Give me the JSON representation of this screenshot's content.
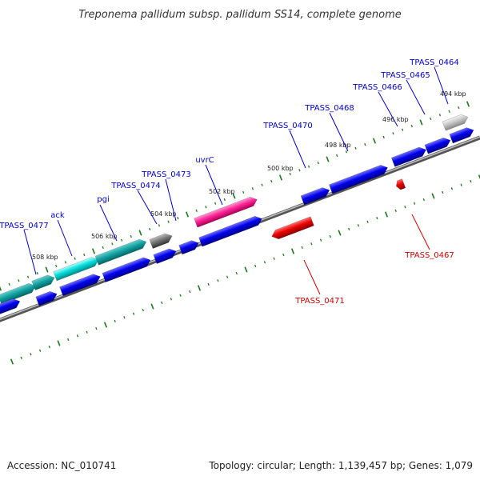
{
  "title": "Treponema pallidum subsp. pallidum SS14, complete genome",
  "footer": {
    "accession": "Accession: NC_010741",
    "summary": "Topology: circular; Length: 1,139,457 bp; Genes: 1,079"
  },
  "colors": {
    "backbone": "#888888",
    "tick": "#1a7a1a",
    "forward_cds": "#0000ee",
    "reverse_cds": "#ee0000",
    "trna": "#00cccc",
    "rrna": "#ff33aa",
    "other": "#777777",
    "pseudo": "#bbbbbb",
    "label_forward": "#0000cc",
    "label_reverse": "#cc0000"
  },
  "tick_labels": [
    "508 kbp",
    "506 kbp",
    "504 kbp",
    "502 kbp",
    "500 kbp",
    "498 kbp",
    "496 kbp",
    "494 kbp"
  ],
  "gene_labels": [
    {
      "text": "TPASS_0477",
      "strand": "forward"
    },
    {
      "text": "ack",
      "strand": "forward"
    },
    {
      "text": "pgi",
      "strand": "forward"
    },
    {
      "text": "TPASS_0474",
      "strand": "forward"
    },
    {
      "text": "TPASS_0473",
      "strand": "forward"
    },
    {
      "text": "uvrC",
      "strand": "forward"
    },
    {
      "text": "TPASS_0470",
      "strand": "forward"
    },
    {
      "text": "TPASS_0468",
      "strand": "forward"
    },
    {
      "text": "TPASS_0466",
      "strand": "forward"
    },
    {
      "text": "TPASS_0465",
      "strand": "forward"
    },
    {
      "text": "TPASS_0464",
      "strand": "forward"
    },
    {
      "text": "TPASS_0471",
      "strand": "reverse"
    },
    {
      "text": "TPASS_0467",
      "strand": "reverse"
    }
  ]
}
